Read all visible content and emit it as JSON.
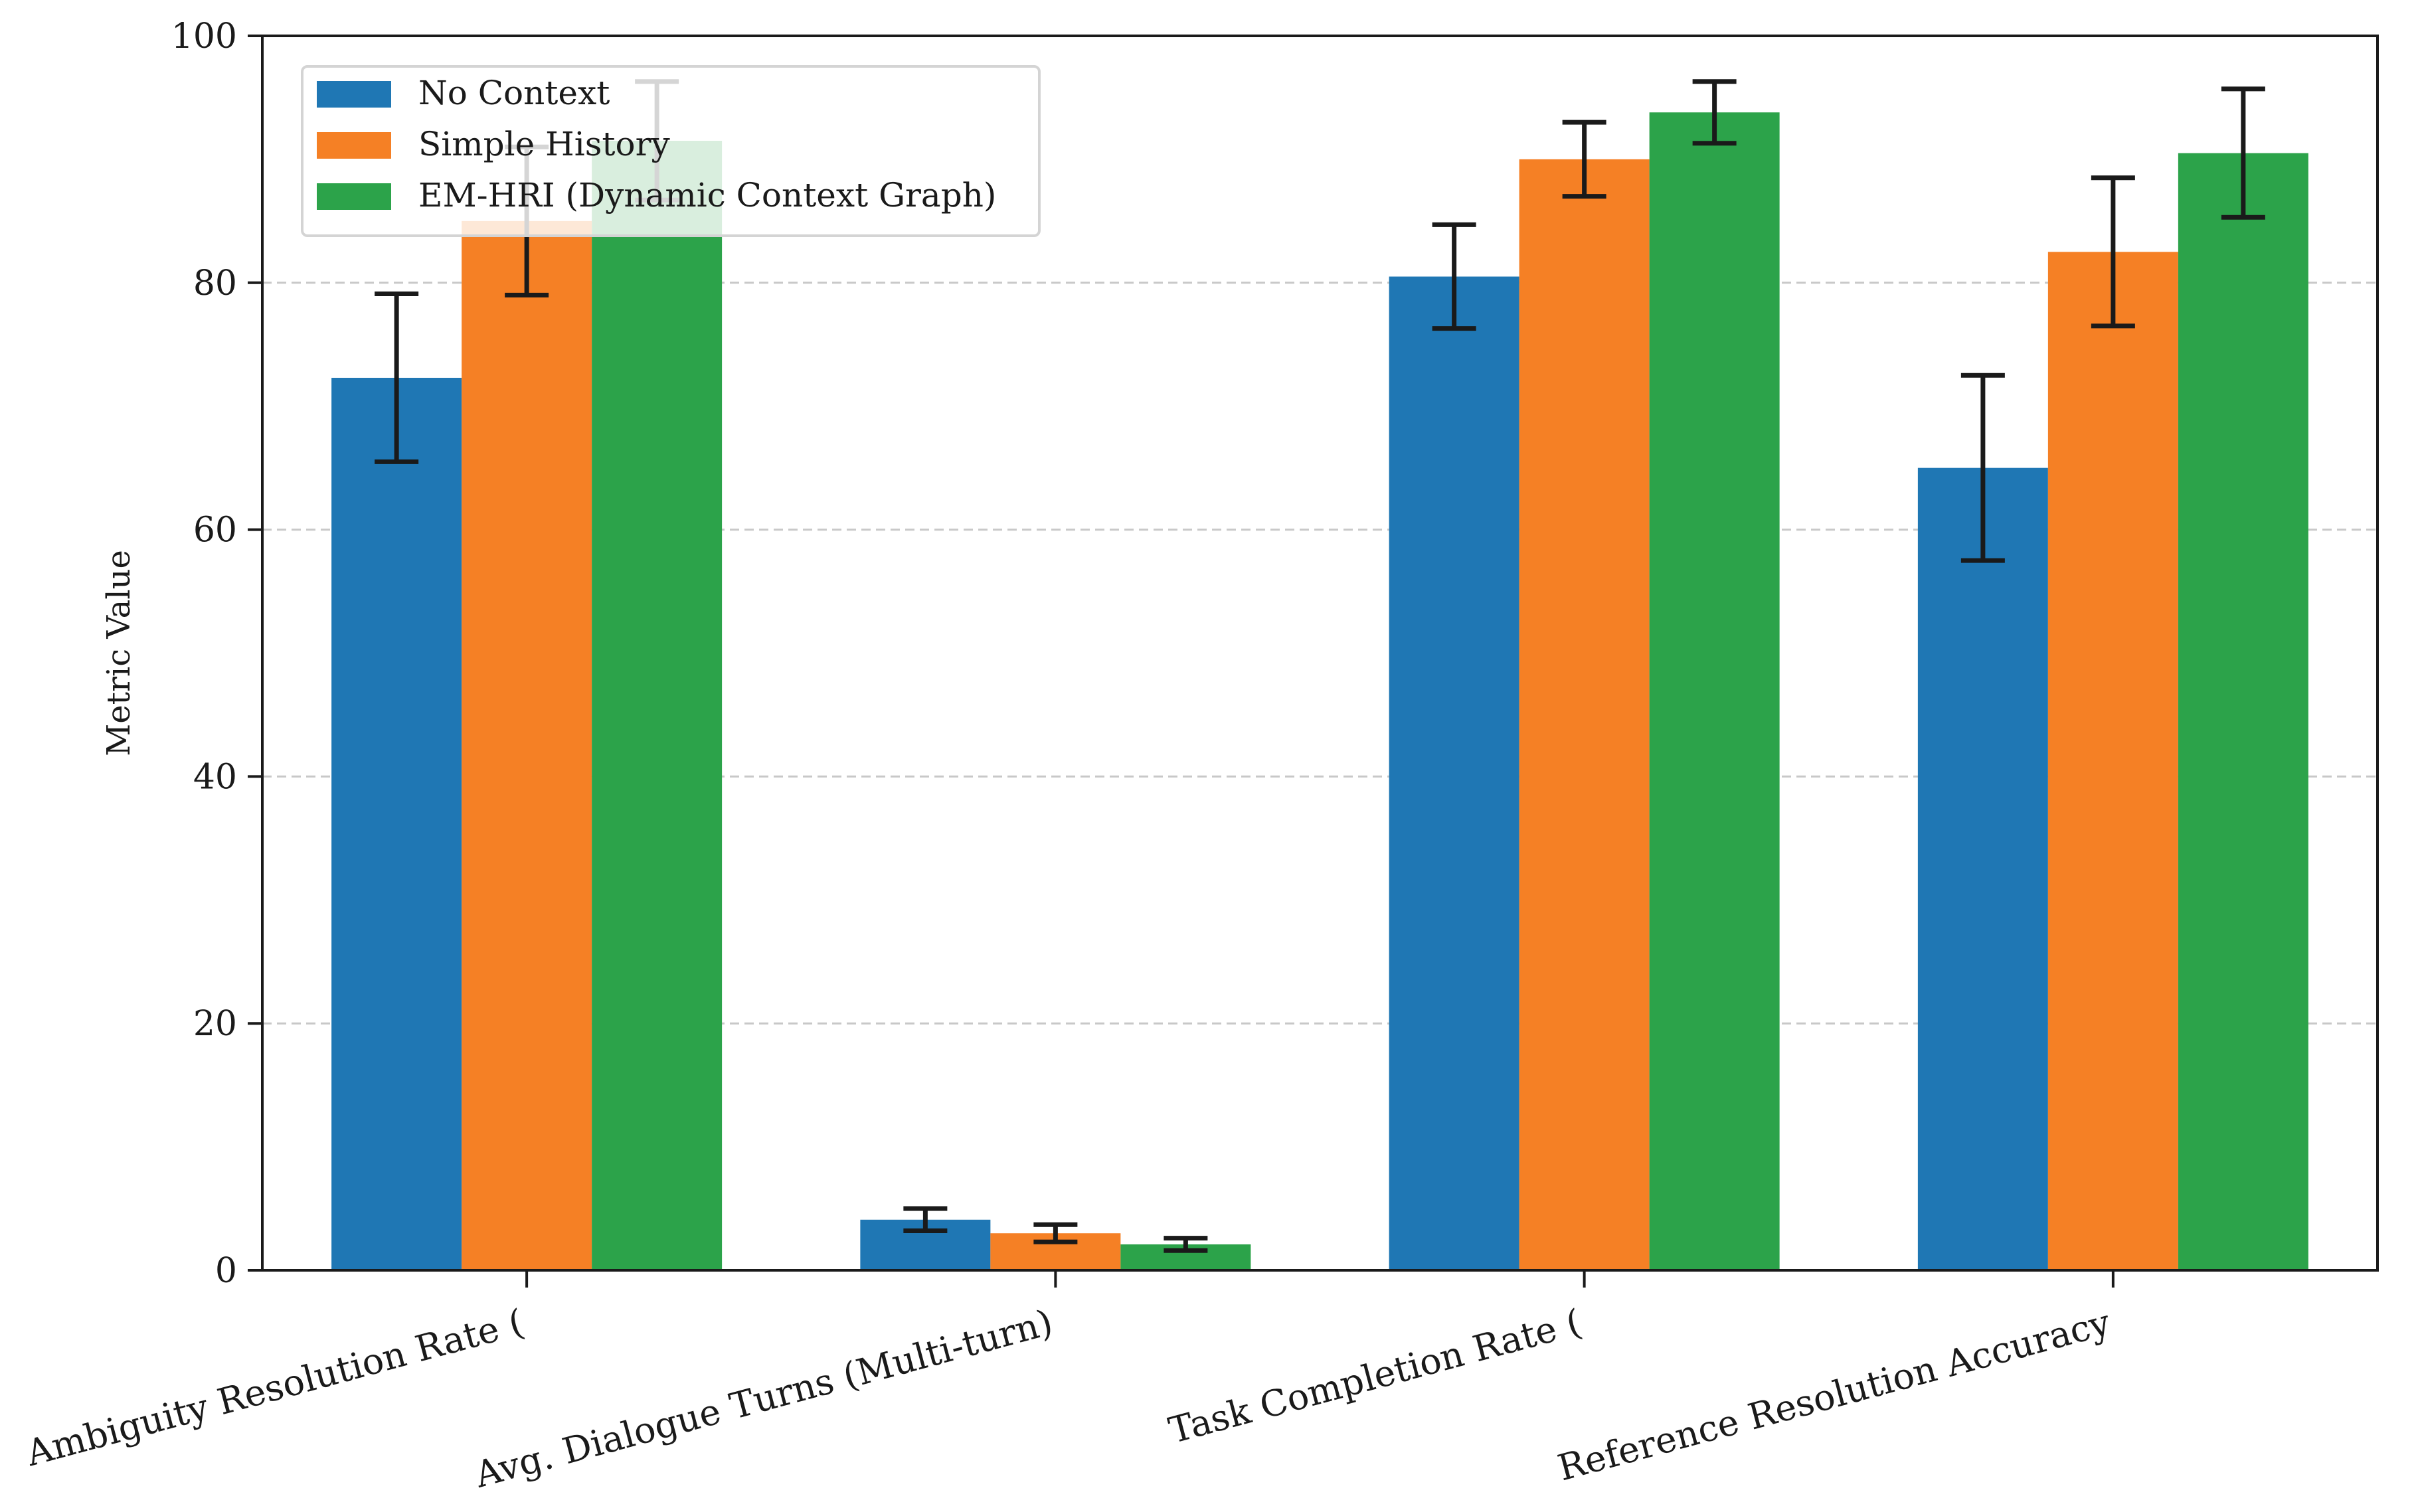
{
  "chart_data": {
    "type": "bar",
    "title": "",
    "xlabel": "",
    "ylabel": "Metric Value",
    "ylim": [
      0,
      100
    ],
    "yticks": [
      0,
      20,
      40,
      60,
      80,
      100
    ],
    "grid": "y-dashed",
    "legend_position": "top-left",
    "categories": [
      "Ambiguity Resolution Rate (",
      "Avg. Dialogue Turns (Multi-turn)",
      "Task Completion Rate (",
      "Reference Resolution Accuracy"
    ],
    "series": [
      {
        "name": "No Context",
        "color": "#1f77b4",
        "values": [
          72.3,
          4.1,
          80.5,
          65.0
        ],
        "errors": [
          6.8,
          0.9,
          4.2,
          7.5
        ]
      },
      {
        "name": "Simple History",
        "color": "#f58025",
        "values": [
          85.0,
          3.0,
          90.0,
          82.5
        ],
        "errors": [
          6.0,
          0.7,
          3.0,
          6.0
        ]
      },
      {
        "name": "EM-HRI (Dynamic Context Graph)",
        "color": "#2ca34a",
        "values": [
          91.5,
          2.1,
          93.8,
          90.5
        ],
        "errors": [
          4.8,
          0.5,
          2.5,
          5.2
        ]
      }
    ]
  }
}
